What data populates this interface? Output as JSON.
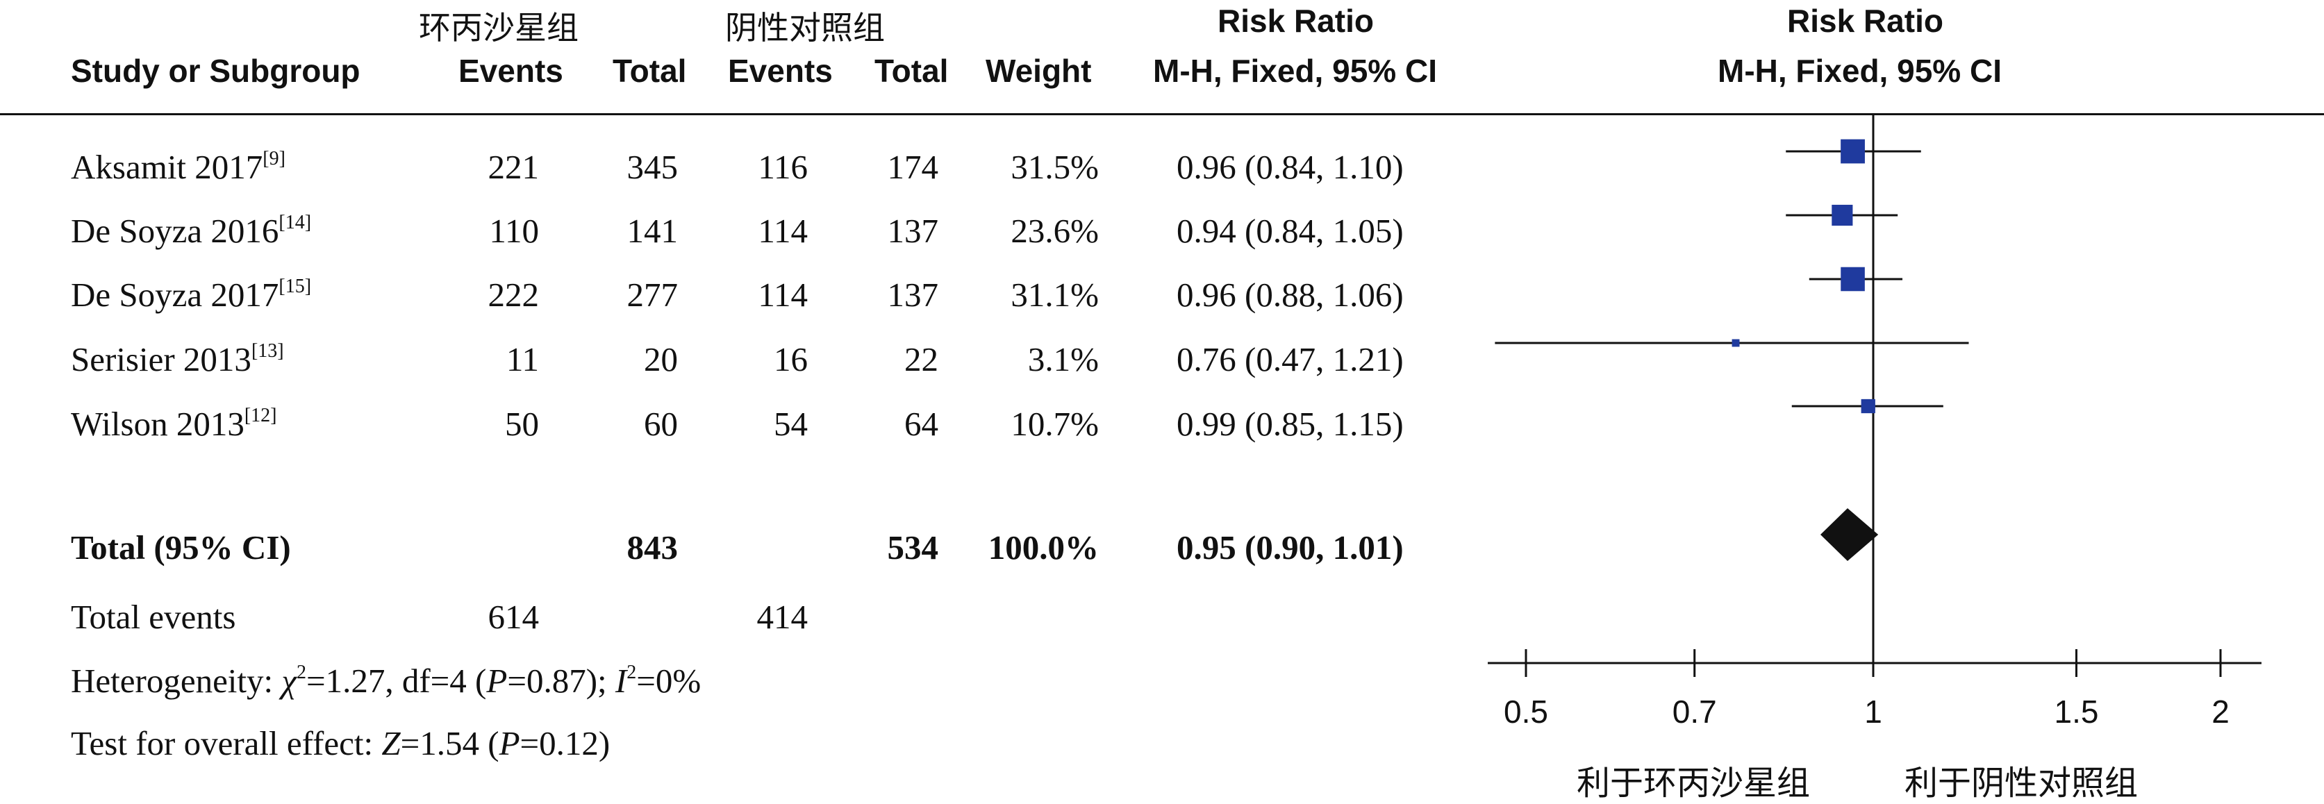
{
  "header": {
    "group_treatment": "环丙沙星组",
    "group_control": "阴性对照组",
    "col_study": "Study or Subgroup",
    "col_events": "Events",
    "col_total": "Total",
    "col_events2": "Events",
    "col_total2": "Total",
    "col_weight": "Weight",
    "rr_title": "Risk Ratio",
    "rr_method": "M-H, Fixed, 95% CI",
    "plot_title": "Risk Ratio",
    "plot_method": "M-H, Fixed, 95% CI"
  },
  "studies": [
    {
      "name": "Aksamit 2017",
      "ref": "[9]",
      "e1": "221",
      "t1": "345",
      "e2": "116",
      "t2": "174",
      "weight": "31.5%",
      "ci": "0.96 (0.84, 1.10)"
    },
    {
      "name": "De Soyza 2016",
      "ref": "[14]",
      "e1": "110",
      "t1": "141",
      "e2": "114",
      "t2": "137",
      "weight": "23.6%",
      "ci": "0.94 (0.84, 1.05)"
    },
    {
      "name": "De Soyza 2017",
      "ref": "[15]",
      "e1": "222",
      "t1": "277",
      "e2": "114",
      "t2": "137",
      "weight": "31.1%",
      "ci": "0.96 (0.88, 1.06)"
    },
    {
      "name": "Serisier 2013",
      "ref": "[13]",
      "e1": "11",
      "t1": "20",
      "e2": "16",
      "t2": "22",
      "weight": "3.1%",
      "ci": "0.76 (0.47, 1.21)"
    },
    {
      "name": "Wilson 2013",
      "ref": "[12]",
      "e1": "50",
      "t1": "60",
      "e2": "54",
      "t2": "64",
      "weight": "10.7%",
      "ci": "0.99 (0.85, 1.15)"
    }
  ],
  "total": {
    "label": "Total (95% CI)",
    "t1": "843",
    "t2": "534",
    "weight": "100.0%",
    "ci": "0.95 (0.90, 1.01)"
  },
  "total_events": {
    "label": "Total events",
    "e1": "614",
    "e2": "414"
  },
  "heterogeneity": {
    "prefix": "Heterogeneity: ",
    "chi": "χ",
    "chi_sup": "2",
    "rest": "=1.27, df=4 (",
    "p": "P",
    "p_rest": "=0.87); ",
    "i": "I",
    "i_sup": "2",
    "i_rest": "=0%"
  },
  "overall": {
    "prefix": "Test for overall effect: ",
    "z": "Z",
    "z_rest": "=1.54 (",
    "p": "P",
    "p_rest": "=0.12)"
  },
  "favours": {
    "left": "利于环丙沙星组",
    "right": "利于阴性对照组"
  },
  "colors": {
    "square": "#1f3a9e",
    "diamond": "#111111",
    "line": "#111111"
  },
  "chart_data": {
    "type": "forest",
    "scale": "log",
    "xlim": [
      0.5,
      2
    ],
    "ticks": [
      0.5,
      0.7,
      1,
      1.5,
      2
    ],
    "tick_labels": [
      "0.5",
      "0.7",
      "1",
      "1.5",
      "2"
    ],
    "null_value": 1,
    "points": [
      {
        "study": "Aksamit 2017",
        "rr": 0.96,
        "lo": 0.84,
        "hi": 1.1,
        "weight": 31.5
      },
      {
        "study": "De Soyza 2016",
        "rr": 0.94,
        "lo": 0.84,
        "hi": 1.05,
        "weight": 23.6
      },
      {
        "study": "De Soyza 2017",
        "rr": 0.96,
        "lo": 0.88,
        "hi": 1.06,
        "weight": 31.1
      },
      {
        "study": "Serisier 2013",
        "rr": 0.76,
        "lo": 0.47,
        "hi": 1.21,
        "weight": 3.1
      },
      {
        "study": "Wilson 2013",
        "rr": 0.99,
        "lo": 0.85,
        "hi": 1.15,
        "weight": 10.7
      }
    ],
    "pooled": {
      "rr": 0.95,
      "lo": 0.9,
      "hi": 1.01
    }
  }
}
